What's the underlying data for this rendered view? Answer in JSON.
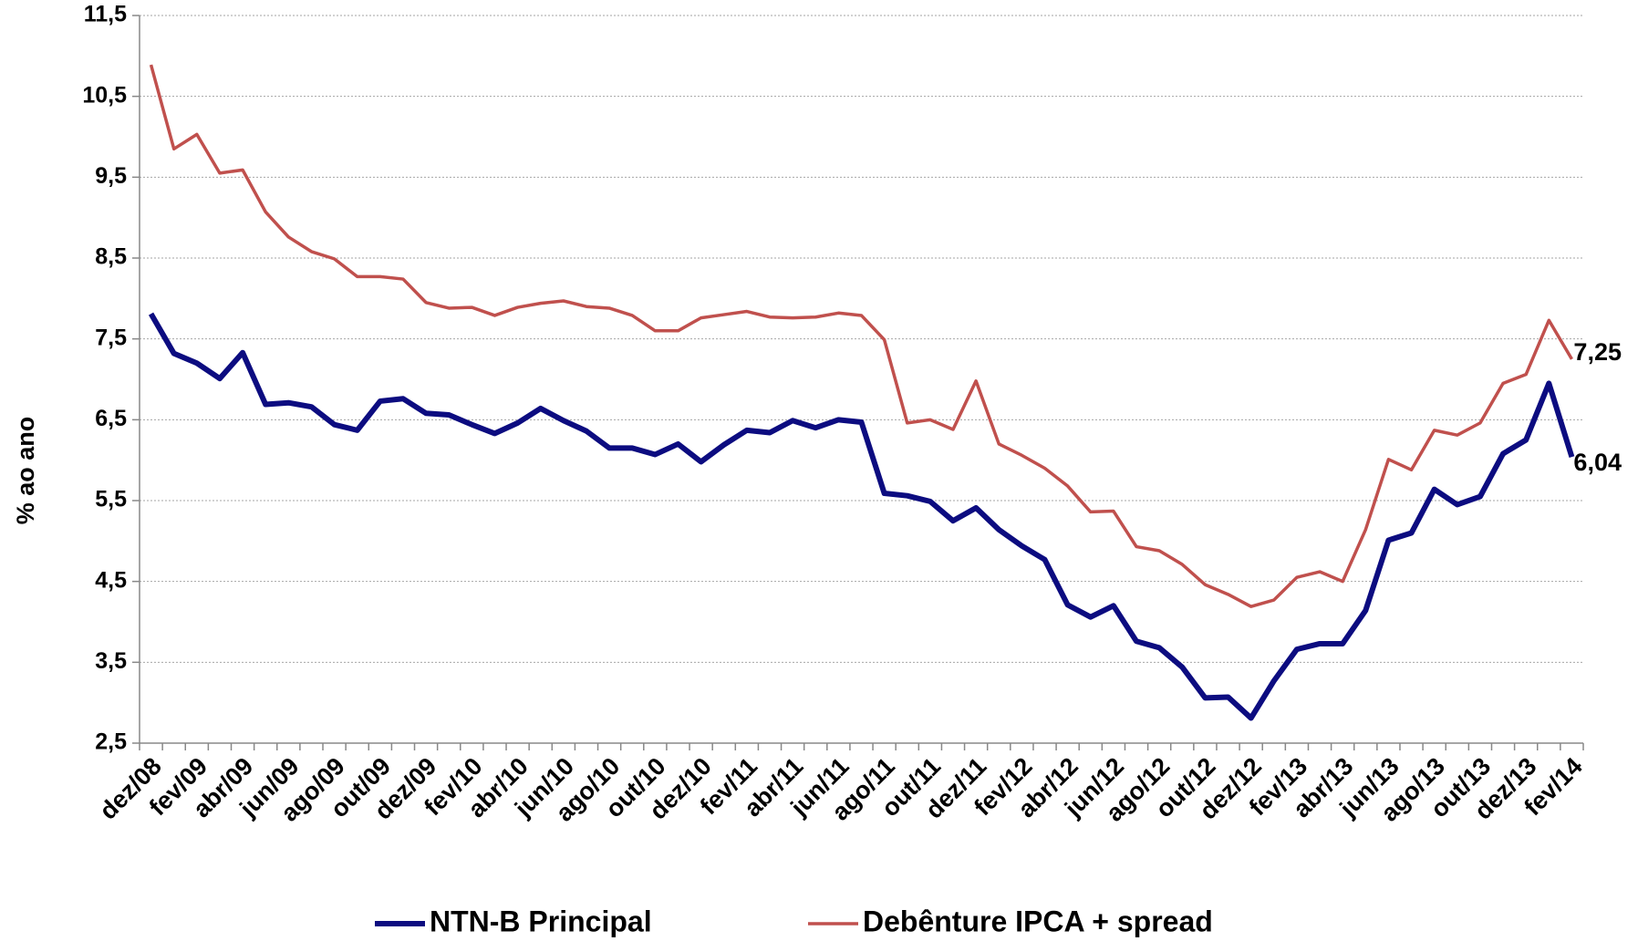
{
  "chart_data": {
    "type": "line",
    "y_label": "% ao ano",
    "categories": [
      "dez/08",
      null,
      "fev/09",
      null,
      "abr/09",
      null,
      "jun/09",
      null,
      "ago/09",
      null,
      "out/09",
      null,
      "dez/09",
      null,
      "fev/10",
      null,
      "abr/10",
      null,
      "jun/10",
      null,
      "ago/10",
      null,
      "out/10",
      null,
      "dez/10",
      null,
      "fev/11",
      null,
      "abr/11",
      null,
      "jun/11",
      null,
      "ago/11",
      null,
      "out/11",
      null,
      "dez/11",
      null,
      "fev/12",
      null,
      "abr/12",
      null,
      "jun/12",
      null,
      "ago/12",
      null,
      "out/12",
      null,
      "dez/12",
      null,
      "fev/13",
      null,
      "abr/13",
      null,
      "jun/13",
      null,
      "ago/13",
      null,
      "out/13",
      null,
      "dez/13",
      null,
      "fev/14"
    ],
    "series": [
      {
        "name": "NTN-B Principal",
        "color": "#0c0c80",
        "values": [
          7.81,
          7.32,
          7.2,
          7.01,
          7.33,
          6.69,
          6.71,
          6.66,
          6.44,
          6.37,
          6.73,
          6.76,
          6.58,
          6.56,
          6.44,
          6.33,
          6.46,
          6.64,
          6.49,
          6.36,
          6.15,
          6.15,
          6.07,
          6.2,
          5.98,
          6.19,
          6.37,
          6.34,
          6.49,
          6.4,
          6.5,
          6.47,
          5.59,
          5.56,
          5.49,
          5.25,
          5.41,
          5.14,
          4.94,
          4.77,
          4.21,
          4.06,
          4.2,
          3.76,
          3.68,
          3.44,
          3.06,
          3.07,
          2.81,
          3.27,
          3.66,
          3.73,
          3.73,
          4.14,
          5.01,
          5.1,
          5.64,
          5.45,
          5.55,
          6.08,
          6.25,
          6.95,
          6.04
        ],
        "value_labels": [
          null,
          null,
          null,
          null,
          null,
          null,
          null,
          null,
          null,
          null,
          null,
          null,
          null,
          null,
          null,
          null,
          null,
          null,
          null,
          null,
          null,
          null,
          null,
          null,
          null,
          null,
          null,
          null,
          null,
          null,
          null,
          null,
          null,
          null,
          null,
          null,
          null,
          null,
          null,
          null,
          null,
          null,
          null,
          null,
          null,
          null,
          null,
          null,
          null,
          null,
          null,
          null,
          null,
          null,
          null,
          null,
          null,
          null,
          null,
          null,
          null,
          null,
          "6,04"
        ]
      },
      {
        "name": "Debênture IPCA + spread",
        "color": "#c0504d",
        "values": [
          10.89,
          9.85,
          10.03,
          9.55,
          9.59,
          9.07,
          8.76,
          8.58,
          8.49,
          8.27,
          8.27,
          8.24,
          7.95,
          7.88,
          7.89,
          7.79,
          7.89,
          7.94,
          7.97,
          7.9,
          7.88,
          7.79,
          7.6,
          7.6,
          7.76,
          7.8,
          7.84,
          7.77,
          7.76,
          7.77,
          7.82,
          7.79,
          7.49,
          6.46,
          6.5,
          6.38,
          6.98,
          6.2,
          6.06,
          5.9,
          5.68,
          5.36,
          5.37,
          4.93,
          4.88,
          4.71,
          4.46,
          4.34,
          4.19,
          4.27,
          4.55,
          4.62,
          4.5,
          5.14,
          6.01,
          5.88,
          6.37,
          6.31,
          6.46,
          6.95,
          7.06,
          7.73,
          7.25
        ],
        "value_labels": [
          null,
          null,
          null,
          null,
          null,
          null,
          null,
          null,
          null,
          null,
          null,
          null,
          null,
          null,
          null,
          null,
          null,
          null,
          null,
          null,
          null,
          null,
          null,
          null,
          null,
          null,
          null,
          null,
          null,
          null,
          null,
          null,
          null,
          null,
          null,
          null,
          null,
          null,
          null,
          null,
          null,
          null,
          null,
          null,
          null,
          null,
          null,
          null,
          null,
          null,
          null,
          null,
          null,
          null,
          null,
          null,
          null,
          null,
          null,
          null,
          null,
          null,
          "7,25"
        ]
      }
    ],
    "ylim": [
      2.5,
      11.5
    ],
    "yticks": [
      {
        "value": 2.5,
        "label": "2,5"
      },
      {
        "value": 3.5,
        "label": "3,5"
      },
      {
        "value": 4.5,
        "label": "4,5"
      },
      {
        "value": 5.5,
        "label": "5,5"
      },
      {
        "value": 6.5,
        "label": "6,5"
      },
      {
        "value": 7.5,
        "label": "7,5"
      },
      {
        "value": 8.5,
        "label": "8,5"
      },
      {
        "value": 9.5,
        "label": "9,5"
      },
      {
        "value": 10.5,
        "label": "10,5"
      },
      {
        "value": 11.5,
        "label": "11,5"
      }
    ],
    "grid": true,
    "legend": "bottom"
  }
}
